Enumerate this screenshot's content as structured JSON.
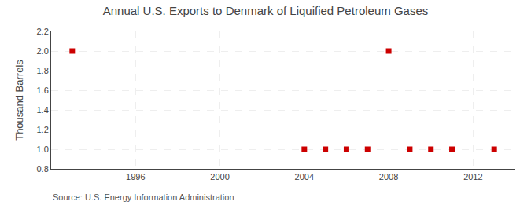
{
  "chart_data": {
    "type": "scatter",
    "title": "Annual U.S. Exports to Denmark of Liquified Petroleum Gases",
    "y_label": "Thousand Barrels",
    "annotations": [
      "Source: U.S. Energy Information Administration"
    ],
    "x": [
      1993,
      2004,
      2005,
      2006,
      2007,
      2008,
      2009,
      2010,
      2011,
      2013
    ],
    "values": [
      2.0,
      1.0,
      1.0,
      1.0,
      1.0,
      2.0,
      1.0,
      1.0,
      1.0,
      1.0
    ],
    "color": "#cc0000",
    "marker": "square",
    "xlim": [
      1992,
      2014
    ],
    "ylim": [
      0.8,
      2.2
    ],
    "xticks": [
      1996,
      2000,
      2004,
      2008,
      2012
    ],
    "yticks": [
      0.8,
      {
        "value": 1.0,
        "label": "1.0"
      },
      1.2,
      1.4,
      1.6,
      1.8,
      {
        "value": 2.0,
        "label": "2.0"
      },
      2.2
    ],
    "grid": true
  }
}
